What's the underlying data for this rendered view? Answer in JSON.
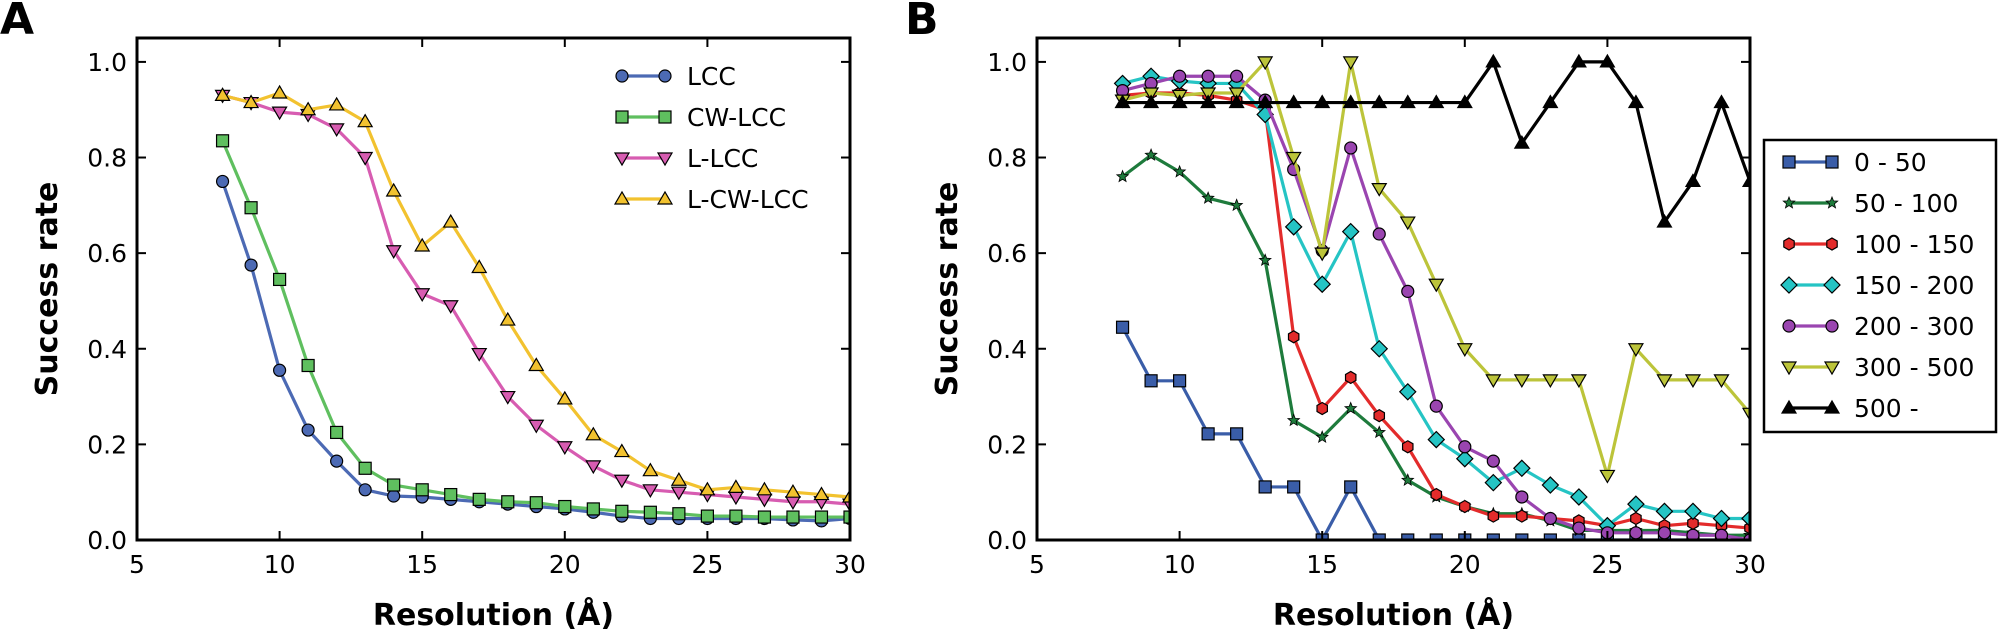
{
  "panels": [
    {
      "letter": "A"
    },
    {
      "letter": "B"
    }
  ],
  "chart_data": [
    {
      "type": "line",
      "xlabel": "Resolution (Å)",
      "ylabel": "Success rate",
      "xlim": [
        5,
        30
      ],
      "ylim": [
        0,
        1.05
      ],
      "xticks": [
        5,
        10,
        15,
        20,
        25,
        30
      ],
      "yticks": [
        "0.0",
        "0.2",
        "0.4",
        "0.6",
        "0.8",
        "1.0"
      ],
      "grid": false,
      "legend_position": "top-right inside",
      "x": [
        8,
        9,
        10,
        11,
        12,
        13,
        14,
        15,
        16,
        17,
        18,
        19,
        20,
        21,
        22,
        23,
        24,
        25,
        26,
        27,
        28,
        29,
        30
      ],
      "series": [
        {
          "name": "LCC",
          "color": "#4c6ab4",
          "marker": "circle",
          "values": [
            0.75,
            0.575,
            0.355,
            0.23,
            0.165,
            0.105,
            0.092,
            0.09,
            0.085,
            0.08,
            0.075,
            0.07,
            0.065,
            0.058,
            0.05,
            0.045,
            0.045,
            0.045,
            0.045,
            0.045,
            0.042,
            0.04,
            0.045
          ]
        },
        {
          "name": "CW-LCC",
          "color": "#5fbf5f",
          "marker": "square",
          "values": [
            0.835,
            0.695,
            0.545,
            0.365,
            0.225,
            0.15,
            0.115,
            0.105,
            0.095,
            0.085,
            0.08,
            0.078,
            0.07,
            0.065,
            0.06,
            0.058,
            0.055,
            0.05,
            0.05,
            0.048,
            0.048,
            0.048,
            0.048
          ]
        },
        {
          "name": "L-LCC",
          "color": "#d75cb1",
          "marker": "triangle-down",
          "values": [
            0.93,
            0.915,
            0.895,
            0.89,
            0.86,
            0.8,
            0.605,
            0.515,
            0.49,
            0.39,
            0.3,
            0.24,
            0.195,
            0.155,
            0.125,
            0.105,
            0.1,
            0.095,
            0.09,
            0.085,
            0.08,
            0.08,
            0.075
          ]
        },
        {
          "name": "L-CW-LCC",
          "color": "#f2c22f",
          "marker": "triangle-up",
          "values": [
            0.93,
            0.915,
            0.935,
            0.9,
            0.91,
            0.875,
            0.73,
            0.615,
            0.665,
            0.57,
            0.46,
            0.365,
            0.295,
            0.22,
            0.185,
            0.145,
            0.125,
            0.105,
            0.11,
            0.105,
            0.1,
            0.095,
            0.09
          ]
        }
      ]
    },
    {
      "type": "line",
      "xlabel": "Resolution (Å)",
      "ylabel": "Success rate",
      "xlim": [
        5,
        30
      ],
      "ylim": [
        0,
        1.05
      ],
      "xticks": [
        5,
        10,
        15,
        20,
        25,
        30
      ],
      "yticks": [
        "0.0",
        "0.2",
        "0.4",
        "0.6",
        "0.8",
        "1.0"
      ],
      "grid": false,
      "legend_position": "right outside",
      "x": [
        8,
        9,
        10,
        11,
        12,
        13,
        14,
        15,
        16,
        17,
        18,
        19,
        20,
        21,
        22,
        23,
        24,
        25,
        26,
        27,
        28,
        29,
        30
      ],
      "series": [
        {
          "name": "0 - 50",
          "color": "#3a5da8",
          "marker": "square",
          "values": [
            0.445,
            0.333,
            0.333,
            0.222,
            0.222,
            0.111,
            0.111,
            0.0,
            0.111,
            0.0,
            0.0,
            0.0,
            0.0,
            0.0,
            0.0,
            0.0,
            0.0,
            0.0,
            0.0,
            0.0,
            0.0,
            0.0,
            0.0
          ]
        },
        {
          "name": "50 - 100",
          "color": "#1e7b3c",
          "marker": "star",
          "values": [
            0.76,
            0.805,
            0.77,
            0.715,
            0.7,
            0.585,
            0.25,
            0.215,
            0.275,
            0.225,
            0.125,
            0.09,
            0.07,
            0.055,
            0.055,
            0.04,
            0.02,
            0.02,
            0.02,
            0.02,
            0.015,
            0.01,
            0.01
          ]
        },
        {
          "name": "100 - 150",
          "color": "#e32b2b",
          "marker": "hexagon",
          "values": [
            0.93,
            0.935,
            0.935,
            0.93,
            0.92,
            0.9,
            0.425,
            0.275,
            0.34,
            0.26,
            0.195,
            0.095,
            0.07,
            0.05,
            0.05,
            0.045,
            0.04,
            0.03,
            0.045,
            0.03,
            0.035,
            0.03,
            0.025
          ]
        },
        {
          "name": "150 - 200",
          "color": "#25c4c4",
          "marker": "diamond",
          "values": [
            0.955,
            0.97,
            0.96,
            0.955,
            0.955,
            0.89,
            0.655,
            0.535,
            0.645,
            0.4,
            0.31,
            0.21,
            0.17,
            0.12,
            0.15,
            0.115,
            0.09,
            0.03,
            0.075,
            0.06,
            0.06,
            0.045,
            0.045
          ]
        },
        {
          "name": "200 - 300",
          "color": "#9a45b0",
          "marker": "circle",
          "values": [
            0.94,
            0.955,
            0.97,
            0.97,
            0.97,
            0.92,
            0.775,
            0.605,
            0.82,
            0.64,
            0.52,
            0.28,
            0.195,
            0.165,
            0.09,
            0.045,
            0.025,
            0.015,
            0.015,
            0.015,
            0.01,
            0.01,
            0.0
          ]
        },
        {
          "name": "300 - 500",
          "color": "#bcc43a",
          "marker": "triangle-down",
          "values": [
            0.92,
            0.935,
            0.93,
            0.935,
            0.935,
            1.0,
            0.8,
            0.6,
            1.0,
            0.735,
            0.665,
            0.535,
            0.4,
            0.335,
            0.335,
            0.335,
            0.335,
            0.135,
            0.4,
            0.335,
            0.335,
            0.335,
            0.265
          ]
        },
        {
          "name": "500 -",
          "color": "#000000",
          "marker": "triangle-up",
          "values": [
            0.915,
            0.915,
            0.915,
            0.915,
            0.915,
            0.915,
            0.915,
            0.915,
            0.915,
            0.915,
            0.915,
            0.915,
            0.915,
            1.0,
            0.83,
            0.915,
            1.0,
            1.0,
            0.915,
            0.665,
            0.75,
            0.915,
            0.75
          ]
        }
      ]
    }
  ]
}
